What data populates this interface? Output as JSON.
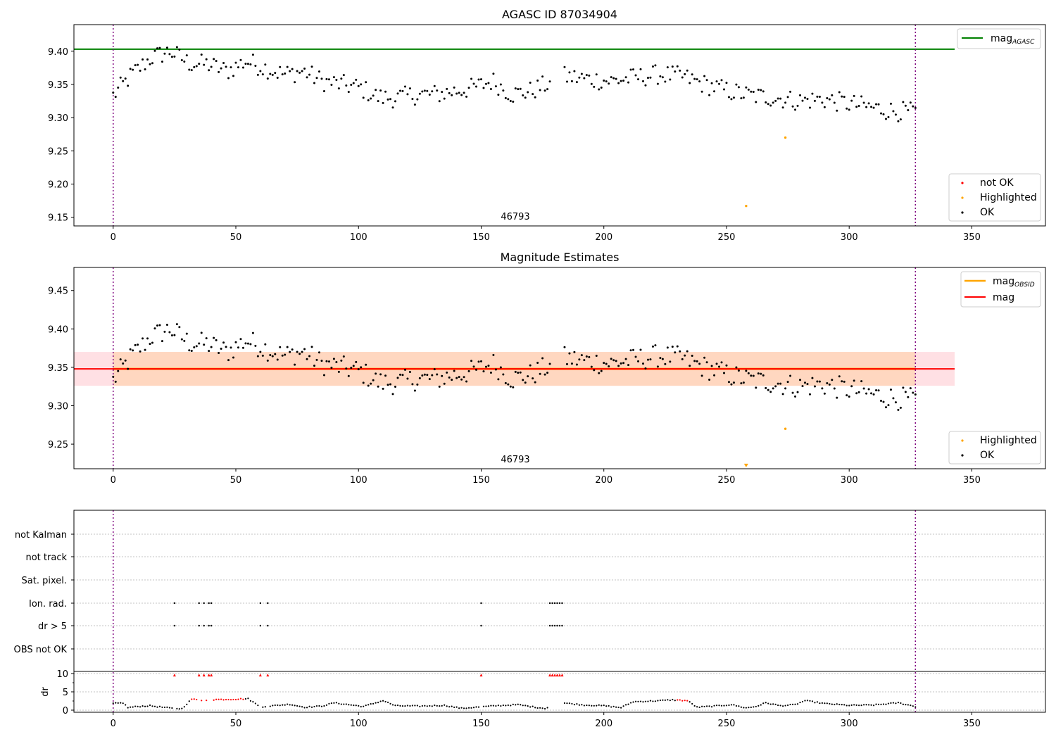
{
  "chart_data": [
    {
      "type": "scatter",
      "title": "AGASC ID 87034904",
      "xlim": [
        -16,
        380
      ],
      "ylim": [
        9.137,
        9.44
      ],
      "xticks": [
        "0",
        "50",
        "100",
        "150",
        "200",
        "250",
        "300",
        "350"
      ],
      "yticks": [
        "9.15",
        "9.20",
        "9.25",
        "9.30",
        "9.35",
        "9.40"
      ],
      "vlines": [
        0,
        327
      ],
      "hlines": [
        {
          "name": "mag_AGASC",
          "y": 9.403,
          "x_end": 343,
          "color": "#008000"
        }
      ],
      "annotation": {
        "text": "46793",
        "x": 163,
        "y": 9.15
      },
      "legend_top": {
        "label": "mag",
        "subscript": "AGASC",
        "color": "#008000"
      },
      "legend_bottom": [
        {
          "label": "not OK",
          "color": "#ff0000"
        },
        {
          "label": "Highlighted",
          "color": "#ffa500"
        },
        {
          "label": "OK",
          "color": "#000000"
        }
      ],
      "series": [
        {
          "name": "Highlighted",
          "color": "#ffa500",
          "points": [
            [
              258,
              9.167
            ],
            [
              274,
              9.27
            ]
          ]
        },
        {
          "name": "OK",
          "color": "#000000",
          "segments": [
            {
              "x_from": 0,
              "x_to": 178,
              "y": [
                9.333,
                9.365,
                9.39,
                9.4,
                9.382,
                9.38,
                9.37,
                9.385,
                9.375,
                9.365,
                9.37,
                9.355,
                9.35,
                9.345,
                9.33,
                9.33,
                9.335,
                9.335,
                9.34,
                9.345,
                9.355,
                9.335,
                9.34,
                9.352
              ]
            },
            {
              "x_from": 184,
              "x_to": 327,
              "y": [
                9.362,
                9.358,
                9.355,
                9.36,
                9.365,
                9.362,
                9.35,
                9.34,
                9.333,
                9.33,
                9.325,
                9.328,
                9.322,
                9.316,
                9.31,
                9.308
              ]
            }
          ]
        }
      ]
    },
    {
      "type": "scatter",
      "title": "Magnitude Estimates",
      "xlim": [
        -16,
        380
      ],
      "ylim": [
        9.218,
        9.48
      ],
      "xticks": [
        "0",
        "50",
        "100",
        "150",
        "200",
        "250",
        "300",
        "350"
      ],
      "yticks": [
        "9.25",
        "9.30",
        "9.35",
        "9.40",
        "9.45"
      ],
      "vlines": [
        0,
        327
      ],
      "bands": [
        {
          "name": "mag band",
          "y": [
            9.326,
            9.37
          ],
          "x": [
            -16,
            343
          ],
          "color": "#ffe0e4"
        },
        {
          "name": "mag_OBSID band",
          "y": [
            9.326,
            9.37
          ],
          "x": [
            0,
            327
          ],
          "color": "#ffd7c0"
        }
      ],
      "hlines": [
        {
          "name": "mag_OBSID",
          "y": 9.348,
          "x_start": 0,
          "x_end": 327,
          "color": "#ffa500"
        },
        {
          "name": "mag",
          "y": 9.348,
          "x_start": -16,
          "x_end": 343,
          "color": "#ff0000"
        }
      ],
      "annotation": {
        "text": "46793",
        "x": 163,
        "y": 9.228
      },
      "legend_top": [
        {
          "label": "mag",
          "subscript": "OBSID",
          "color": "#ffa500"
        },
        {
          "label": "mag",
          "subscript": "",
          "color": "#ff0000"
        }
      ],
      "legend_bottom": [
        {
          "label": "Highlighted",
          "color": "#ffa500"
        },
        {
          "label": "OK",
          "color": "#000000"
        }
      ],
      "series": [
        {
          "name": "Highlighted",
          "color": "#ffa500",
          "points": [
            [
              274,
              9.27
            ]
          ]
        },
        {
          "name": "Highlighted (below range)",
          "color": "#ffa500",
          "marker": "triangle-down",
          "points": [
            [
              258,
              9.22
            ]
          ]
        }
      ]
    },
    {
      "type": "scatter",
      "title": "",
      "xlim": [
        -16,
        380
      ],
      "xticks": [
        "0",
        "50",
        "100",
        "150",
        "200",
        "250",
        "300",
        "350"
      ],
      "vlines": [
        0,
        327
      ],
      "flag_rows": [
        "not Kalman",
        "not track",
        "Sat. pixel.",
        "Ion. rad.",
        "dr > 5",
        "OBS not OK"
      ],
      "flag_points": {
        "Ion. rad.": [
          25,
          35,
          37,
          39,
          40,
          60,
          63,
          150,
          178,
          179,
          180,
          181,
          182,
          183
        ],
        "dr > 5": [
          25,
          35,
          37,
          39,
          40,
          60,
          63,
          150,
          178,
          179,
          180,
          181,
          182,
          183
        ]
      },
      "dr_ylabel": "dr",
      "dr_yticks": [
        "0",
        "5",
        "10"
      ],
      "dr_ylim": [
        0,
        10
      ],
      "dr_flagged_x": [
        25,
        35,
        37,
        39,
        40,
        60,
        63,
        150,
        178,
        179,
        180,
        181,
        182,
        183
      ],
      "dr_profile": [
        [
          0,
          1.8
        ],
        [
          4,
          2
        ],
        [
          6,
          0.7
        ],
        [
          10,
          1.0
        ],
        [
          15,
          1.2
        ],
        [
          20,
          0.8
        ],
        [
          24,
          0.5
        ],
        [
          28,
          0.4
        ],
        [
          32,
          3.0
        ],
        [
          36,
          2.7
        ],
        [
          42,
          2.9
        ],
        [
          50,
          3.0
        ],
        [
          55,
          3.1
        ],
        [
          60,
          0.9
        ],
        [
          65,
          1.2
        ],
        [
          72,
          1.6
        ],
        [
          78,
          0.8
        ],
        [
          85,
          1.1
        ],
        [
          90,
          2.0
        ],
        [
          96,
          1.5
        ],
        [
          102,
          1.0
        ],
        [
          110,
          2.6
        ],
        [
          115,
          1.2
        ],
        [
          125,
          1.1
        ],
        [
          135,
          1.3
        ],
        [
          142,
          0.5
        ],
        [
          148,
          0.8
        ],
        [
          156,
          1.2
        ],
        [
          165,
          1.5
        ],
        [
          172,
          0.8
        ],
        [
          176,
          0.5
        ],
        [
          183,
          2.0
        ],
        [
          192,
          1.4
        ],
        [
          200,
          1.2
        ],
        [
          207,
          0.7
        ],
        [
          212,
          2.3
        ],
        [
          220,
          2.5
        ],
        [
          228,
          2.8
        ],
        [
          234,
          2.6
        ],
        [
          238,
          0.8
        ],
        [
          245,
          1.1
        ],
        [
          252,
          1.5
        ],
        [
          258,
          0.6
        ],
        [
          262,
          1.0
        ],
        [
          266,
          2.0
        ],
        [
          272,
          1.2
        ],
        [
          278,
          1.5
        ],
        [
          282,
          2.6
        ],
        [
          290,
          1.8
        ],
        [
          300,
          1.3
        ],
        [
          310,
          1.4
        ],
        [
          320,
          2.0
        ],
        [
          327,
          1.0
        ]
      ],
      "dr_red_ranges": [
        [
          32,
          53
        ],
        [
          230,
          234
        ]
      ]
    }
  ]
}
